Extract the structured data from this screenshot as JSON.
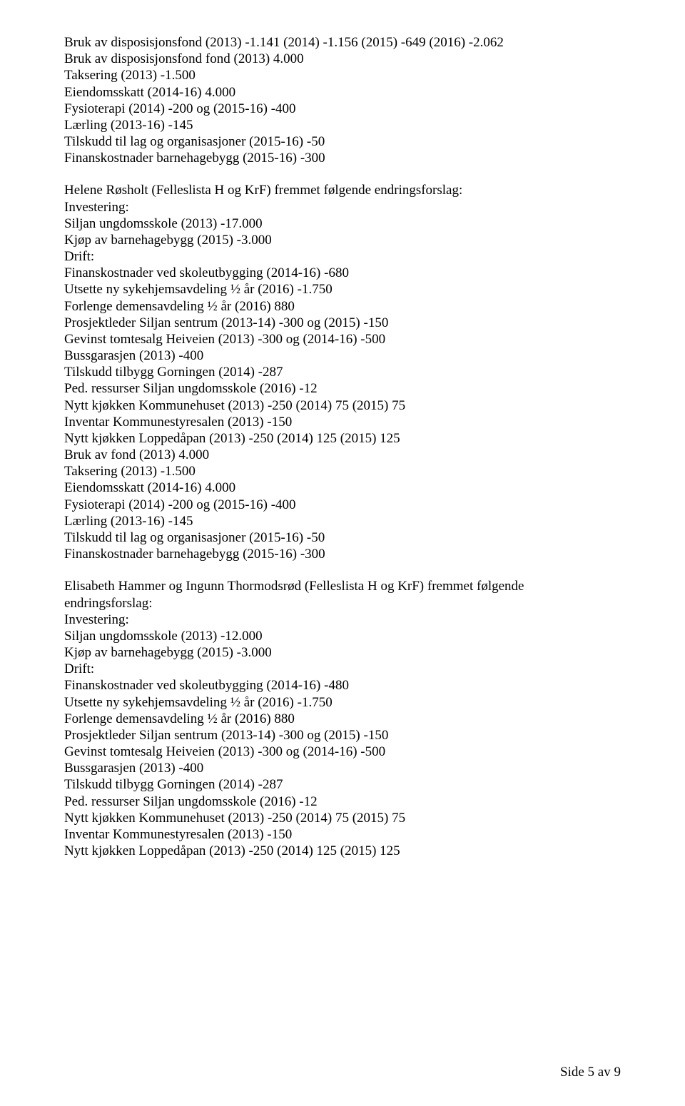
{
  "blocks": [
    {
      "lines": [
        "Bruk av disposisjonsfond (2013) -1.141 (2014) -1.156 (2015) -649 (2016) -2.062",
        "Bruk av disposisjonsfond fond (2013) 4.000",
        "Taksering (2013) -1.500",
        "Eiendomsskatt (2014-16) 4.000",
        "Fysioterapi (2014) -200 og (2015-16) -400",
        "Lærling (2013-16) -145",
        "Tilskudd til lag og organisasjoner (2015-16) -50",
        "Finanskostnader barnehagebygg (2015-16) -300"
      ]
    },
    {
      "lines": [
        "Helene Røsholt (Felleslista H og KrF) fremmet følgende endringsforslag:",
        "Investering:",
        "Siljan ungdomsskole (2013) -17.000",
        "Kjøp av barnehagebygg (2015) -3.000",
        "Drift:",
        "Finanskostnader ved skoleutbygging (2014-16) -680",
        "Utsette ny sykehjemsavdeling ½ år (2016) -1.750",
        "Forlenge demensavdeling ½ år (2016) 880",
        "Prosjektleder Siljan sentrum (2013-14) -300 og (2015) -150",
        "Gevinst tomtesalg Heiveien (2013) -300 og (2014-16) -500",
        "Bussgarasjen (2013) -400",
        "Tilskudd tilbygg Gorningen (2014) -287",
        "Ped. ressurser Siljan ungdomsskole (2016) -12",
        "Nytt kjøkken Kommunehuset (2013) -250 (2014) 75 (2015) 75",
        "Inventar Kommunestyresalen (2013) -150",
        "Nytt kjøkken Loppedåpan (2013) -250 (2014) 125 (2015) 125",
        "Bruk av fond (2013) 4.000",
        "Taksering (2013) -1.500",
        "Eiendomsskatt (2014-16) 4.000",
        "Fysioterapi (2014) -200 og (2015-16) -400",
        "Lærling (2013-16) -145",
        "Tilskudd til lag og organisasjoner (2015-16) -50",
        "Finanskostnader barnehagebygg (2015-16) -300"
      ]
    },
    {
      "lines": [
        "Elisabeth Hammer og Ingunn Thormodsrød (Felleslista H og KrF) fremmet følgende",
        "endringsforslag:",
        "Investering:",
        "Siljan ungdomsskole (2013) -12.000",
        "Kjøp av barnehagebygg (2015) -3.000",
        "Drift:",
        "Finanskostnader ved skoleutbygging (2014-16) -480",
        "Utsette ny sykehjemsavdeling ½ år (2016) -1.750",
        "Forlenge demensavdeling ½ år (2016) 880",
        "Prosjektleder Siljan sentrum (2013-14) -300 og (2015) -150",
        "Gevinst tomtesalg Heiveien (2013) -300 og (2014-16) -500",
        "Bussgarasjen (2013) -400",
        "Tilskudd tilbygg Gorningen (2014) -287",
        "Ped. ressurser Siljan ungdomsskole (2016) -12",
        "Nytt kjøkken Kommunehuset (2013) -250 (2014) 75 (2015) 75",
        "Inventar Kommunestyresalen (2013) -150",
        "Nytt kjøkken Loppedåpan (2013) -250 (2014) 125 (2015) 125"
      ]
    }
  ],
  "footer": "Side 5 av 9"
}
